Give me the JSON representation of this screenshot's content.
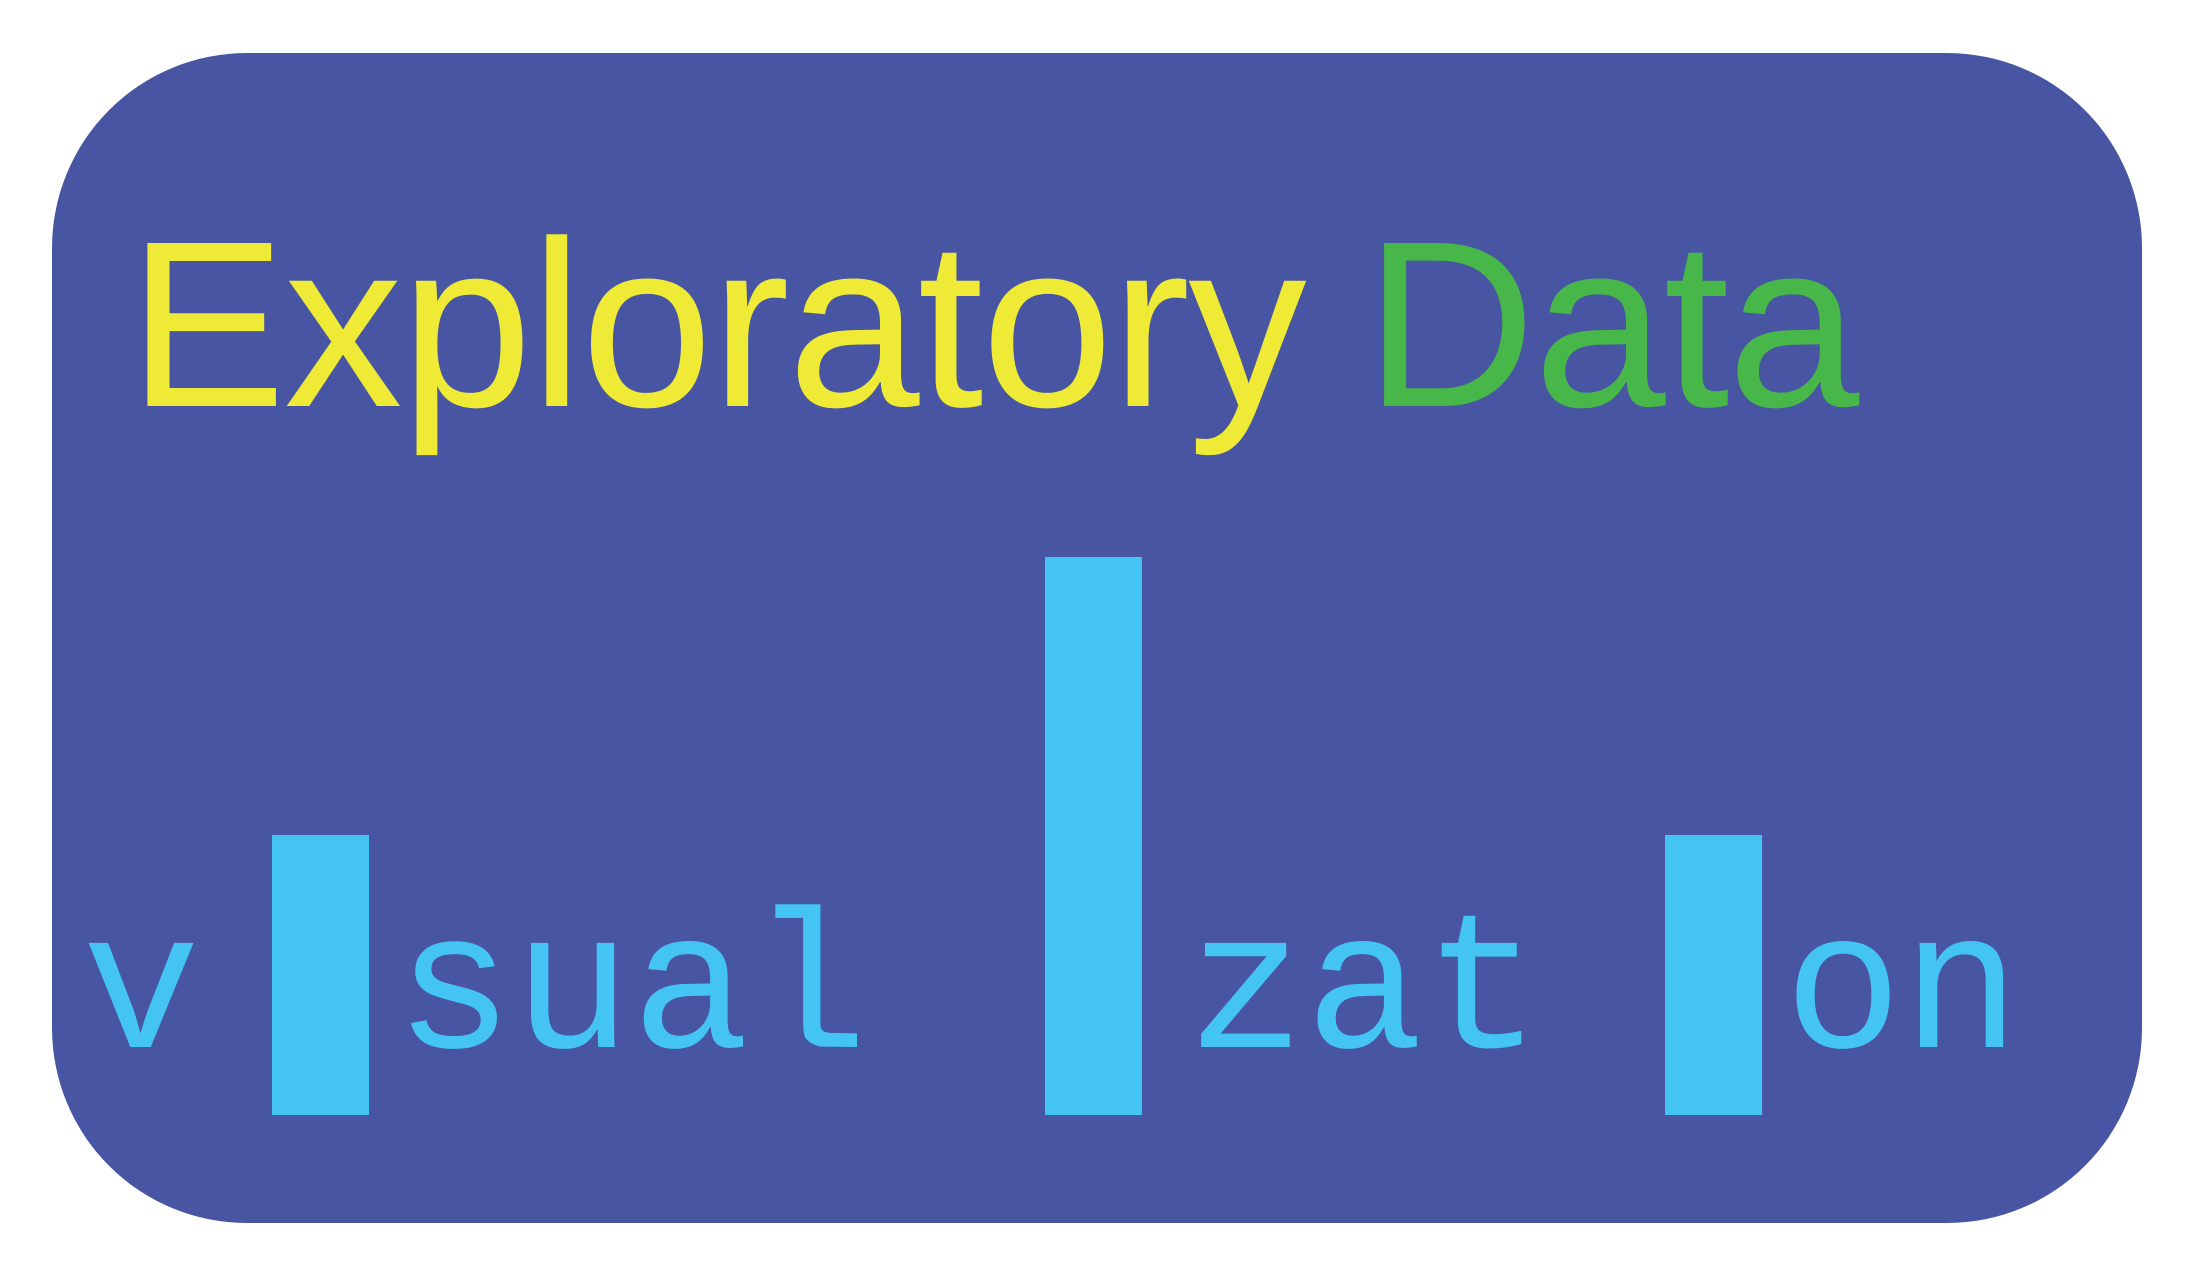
{
  "logo": {
    "title_word1": "Exploratory",
    "title_word2": "Data",
    "viz_parts": [
      "v",
      "sual",
      "zat",
      "on"
    ],
    "colors": {
      "background": "#4855a2",
      "title_word1": "#eeea35",
      "title_word2": "#48b749",
      "viz": "#43c4f2"
    },
    "bars": [
      {
        "replaces_letter": "i",
        "relative_height": 0.5
      },
      {
        "replaces_letter": "i",
        "relative_height": 1.0
      },
      {
        "replaces_letter": "i",
        "relative_height": 0.5
      }
    ]
  }
}
